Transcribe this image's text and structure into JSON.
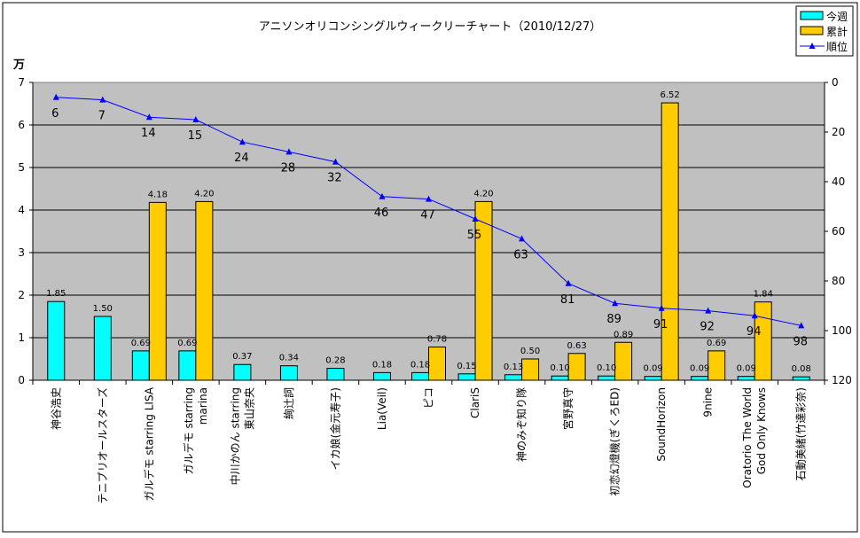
{
  "chart_data": {
    "type": "bar",
    "title": "アニソンオリコンシングルウィークリーチャート（2010/12/27）",
    "ylabel": "万",
    "ylim": [
      0,
      7
    ],
    "yticks": [
      0,
      1,
      2,
      3,
      4,
      5,
      6,
      7
    ],
    "y2lim": [
      0,
      120
    ],
    "y2ticks": [
      0,
      20,
      40,
      60,
      80,
      100,
      120
    ],
    "y2_reversed": true,
    "grid": true,
    "legend_position": "top-right",
    "categories": [
      "神谷浩史",
      "テニプリオールスターズ",
      "ガルデモ starring LISA",
      "ガルデモ starring marina",
      "中川かのん starring 東山奈央",
      "絢辻詞",
      "イカ娘(金元寿子)",
      "Lia(Veil)",
      "ピコ",
      "ClariS",
      "神のみぞ知り隊",
      "宮野真守",
      "初恋幻燈機(ぎくろED)",
      "SoundHorizon",
      "9nine",
      "Oratorio The World God Only Knows",
      "石動美緒(竹達彩奈)"
    ],
    "series": [
      {
        "name": "今週",
        "type": "bar",
        "color": "#00FFFF",
        "values": [
          1.85,
          1.5,
          0.69,
          0.69,
          0.37,
          0.34,
          0.28,
          0.18,
          0.18,
          0.15,
          0.13,
          0.1,
          0.1,
          0.09,
          0.09,
          0.09,
          0.08
        ],
        "labels": [
          "1.85",
          "1.50",
          "0.69",
          "0.69",
          "0.37",
          "0.34",
          "0.28",
          "0.18",
          "0.18",
          "0.15",
          "0.13",
          "0.10",
          "0.10",
          "0.09",
          "0.09",
          "0.09",
          "0.08"
        ]
      },
      {
        "name": "累計",
        "type": "bar",
        "color": "#FFCC00",
        "values": [
          null,
          null,
          4.18,
          4.2,
          null,
          null,
          null,
          null,
          0.78,
          4.2,
          0.5,
          0.63,
          0.89,
          6.52,
          0.69,
          1.84,
          null
        ],
        "labels": [
          "",
          "",
          "4.18",
          "4.20",
          "",
          "",
          "",
          "",
          "0.78",
          "4.20",
          "0.50",
          "0.63",
          "0.89",
          "6.52",
          "0.69",
          "1.84",
          ""
        ]
      },
      {
        "name": "順位",
        "type": "line",
        "axis": "right",
        "color": "#0000FF",
        "values": [
          6,
          7,
          14,
          15,
          24,
          28,
          32,
          46,
          47,
          55,
          63,
          81,
          89,
          91,
          92,
          94,
          98
        ],
        "labels": [
          "6",
          "7",
          "14",
          "15",
          "24",
          "28",
          "32",
          "46",
          "47",
          "55",
          "63",
          "81",
          "89",
          "91",
          "92",
          "94",
          "98"
        ]
      }
    ]
  }
}
